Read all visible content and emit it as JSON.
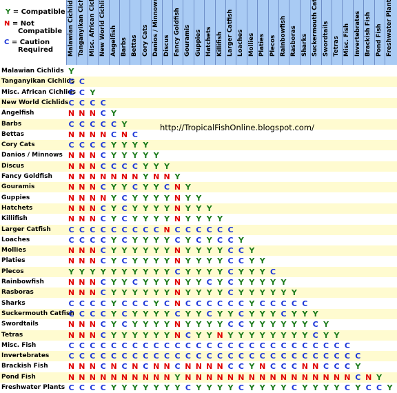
{
  "colors": {
    "Y": "#1a7a1a",
    "N": "#e00000",
    "C": "#1c36d8",
    "header_bg": "#a9cbf4",
    "stripe": "#fffbd0"
  },
  "legend": {
    "compatible": {
      "symbol": "Y",
      "label": "= Compatible"
    },
    "not_compatible": {
      "symbol": "N",
      "label1": "= Not",
      "label2": "Compatible"
    },
    "caution": {
      "symbol": "C",
      "label1": "= Caution",
      "label2": "Required"
    }
  },
  "url": "http://TropicalFishOnline.blogspot.com/",
  "species": [
    "Malawian Cichlids",
    "Tanganyikan Cichlids",
    "Misc. African Cichlids",
    "New World Cichlids",
    "Angelfish",
    "Barbs",
    "Bettas",
    "Cory Cats",
    "Danios / Minnows",
    "Discus",
    "Fancy Goldfish",
    "Gouramis",
    "Guppies",
    "Hatchets",
    "Killifish",
    "Larger Catfish",
    "Loaches",
    "Mollies",
    "Platies",
    "Plecos",
    "Rainbowfish",
    "Rasboras",
    "Sharks",
    "Suckermouth Catfish",
    "Swordtails",
    "Tetras",
    "Misc. Fish",
    "Invertebrates",
    "Brackish Fish",
    "Pond Fish",
    "Freshwater Plants"
  ],
  "matrix": [
    "Y",
    "CC",
    "CCY",
    "CCCC",
    "NNNCY",
    "CCCCCY",
    "NNNNCNC",
    "CCCCYYYY",
    "NNNCYYYYY",
    "NNNCCCCYYY",
    "NNNNNNNYNNY",
    "NNNCYYCYYCNY",
    "NNNNYCYYYYNYY",
    "NNNCYCYYYYNYYY",
    "NNNCYCYYYYNYYYY",
    "CCCCCCCCCNCCCCCC",
    "CCCCYCYYYYCYCYCCY",
    "NNNCYYYYYYNYYYYCCY",
    "NNNCYCYYYYNYYYYCCYY",
    "YYYYYYYYYYCYYYYCYYYC",
    "NNNCYYCYYYNYYCYCYYYYY",
    "NNNCYYYYYYNYYYYCYYYYYY",
    "CCCCYCCCYCNCCCCCCYCCCCC",
    "CCCCYCYYYYCYYCYYCYYYCYYY",
    "NNNCYCYYYYNYYYYCCYYYYYYCY",
    "NNNCYYYYYYNCYYNYYYYYYYYCYY",
    "CCCCCCCCCCCCCCCCCCCCCCCCCCC",
    "CCCCCCCCCCCCCCCCCCCCCCCCCCCC",
    "NNNCNCNCNNCNNNNCCYNCCCNNCCCY",
    "NNNNNNNNNNYNNNNNNNNNNNNNNNNCNY",
    "CCCCYYYYYYYCYYYYCYYYYCYYYYCYCCY"
  ]
}
